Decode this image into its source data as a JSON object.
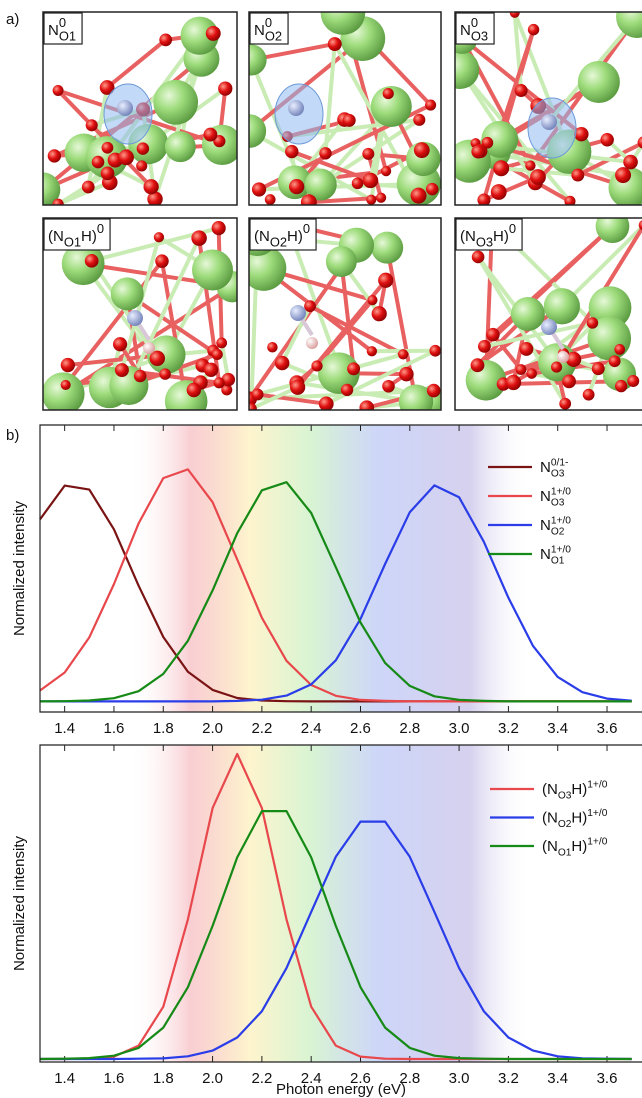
{
  "panel_a": {
    "label": "a)",
    "panels": [
      {
        "label": [
          {
            "text": "N"
          },
          {
            "text": "0",
            "style": "sup"
          },
          {
            "text": "O1",
            "style": "sub"
          }
        ]
      },
      {
        "label": [
          {
            "text": "N"
          },
          {
            "text": "0",
            "style": "sup"
          },
          {
            "text": "O2",
            "style": "sub"
          }
        ]
      },
      {
        "label": [
          {
            "text": "N"
          },
          {
            "text": "0",
            "style": "sup"
          },
          {
            "text": "O3",
            "style": "sub"
          }
        ]
      },
      {
        "label": [
          {
            "text": "(N"
          },
          {
            "text": "O1",
            "style": "sub"
          },
          {
            "text": "H)"
          },
          {
            "text": "0",
            "style": "sup"
          }
        ]
      },
      {
        "label": [
          {
            "text": "(N"
          },
          {
            "text": "O2",
            "style": "sub"
          },
          {
            "text": "H)"
          },
          {
            "text": "0",
            "style": "sup"
          }
        ]
      },
      {
        "label": [
          {
            "text": "(N"
          },
          {
            "text": "O3",
            "style": "sub"
          },
          {
            "text": "H)"
          },
          {
            "text": "0",
            "style": "sup"
          }
        ]
      }
    ]
  },
  "panel_b": {
    "label": "b)"
  },
  "chart_data": [
    {
      "type": "line",
      "ylabel": "Normalized intensity",
      "x": [
        1.3,
        1.4,
        1.5,
        1.6,
        1.7,
        1.8,
        1.9,
        2.0,
        2.1,
        2.2,
        2.3,
        2.4,
        2.5,
        2.6,
        2.7,
        2.8,
        2.9,
        3.0,
        3.1,
        3.2,
        3.3,
        3.4,
        3.5,
        3.6,
        3.7
      ],
      "xlim": [
        1.3,
        3.75
      ],
      "ylim": [
        -0.05,
        1.3
      ],
      "xticks": [
        1.4,
        1.6,
        1.8,
        {
          "value": 2,
          "label": "2.0"
        },
        2.2,
        2.4,
        2.6,
        2.8,
        {
          "value": 3,
          "label": "3.0"
        },
        3.2,
        3.4,
        3.6
      ],
      "legend": "upper right",
      "series": [
        {
          "name": [
            {
              "text": "N"
            },
            {
              "text": "0/1-",
              "style": "sup"
            },
            {
              "text": "O3",
              "style": "sub"
            }
          ],
          "color": "#7a1414",
          "values": [
            0.856,
            1.015,
            0.996,
            0.809,
            0.544,
            0.303,
            0.139,
            0.054,
            0.016,
            0.004,
            0.001,
            0,
            0,
            0,
            0,
            0,
            0,
            0,
            0,
            0,
            0,
            0,
            0,
            0,
            0
          ]
        },
        {
          "name": [
            {
              "text": "N"
            },
            {
              "text": "1+/0",
              "style": "sup"
            },
            {
              "text": "O3",
              "style": "sub"
            }
          ],
          "color": "#e8484c",
          "values": [
            0.051,
            0.136,
            0.301,
            0.552,
            0.837,
            1.05,
            1.091,
            0.937,
            0.668,
            0.393,
            0.191,
            0.077,
            0.026,
            0.007,
            0.002,
            0,
            0,
            0,
            0,
            0,
            0,
            0,
            0,
            0,
            0
          ]
        },
        {
          "name": [
            {
              "text": "N"
            },
            {
              "text": "1+/0",
              "style": "sup"
            },
            {
              "text": "O2",
              "style": "sub"
            }
          ],
          "color": "#2a3de8",
          "values": [
            0,
            0,
            0,
            0,
            0,
            0,
            0,
            0,
            0.002,
            0.008,
            0.027,
            0.08,
            0.193,
            0.388,
            0.646,
            0.89,
            1.016,
            0.96,
            0.751,
            0.487,
            0.26,
            0.115,
            0.043,
            0.013,
            0.003
          ]
        },
        {
          "name": [
            {
              "text": "N"
            },
            {
              "text": "1+/0",
              "style": "sup"
            },
            {
              "text": "O1",
              "style": "sub"
            }
          ],
          "color": "#168a16",
          "values": [
            0,
            0.001,
            0.004,
            0.015,
            0.048,
            0.129,
            0.285,
            0.522,
            0.791,
            0.993,
            1.031,
            0.886,
            0.631,
            0.371,
            0.181,
            0.073,
            0.024,
            0.007,
            0.002,
            0,
            0,
            0,
            0,
            0,
            0
          ]
        }
      ]
    },
    {
      "type": "line",
      "ylabel": "Normalized intensity",
      "xlabel": "Photon energy (eV)",
      "x": [
        1.3,
        1.4,
        1.5,
        1.6,
        1.7,
        1.8,
        1.9,
        2.0,
        2.1,
        2.2,
        2.3,
        2.4,
        2.5,
        2.6,
        2.7,
        2.8,
        2.9,
        3.0,
        3.1,
        3.2,
        3.3,
        3.4,
        3.5,
        3.6,
        3.7
      ],
      "xlim": [
        1.3,
        3.75
      ],
      "ylim": [
        -0.01,
        1.05
      ],
      "xticks": [
        1.4,
        1.6,
        1.8,
        {
          "value": 2,
          "label": "2.0"
        },
        2.2,
        2.4,
        2.6,
        2.8,
        {
          "value": 3,
          "label": "3.0"
        },
        3.2,
        3.4,
        3.6
      ],
      "legend": "upper right",
      "series": [
        {
          "name": [
            {
              "text": "(N"
            },
            {
              "text": "O3",
              "style": "sub"
            },
            {
              "text": "H)"
            },
            {
              "text": "1+/0",
              "style": "sup"
            }
          ],
          "color": "#e8484c",
          "values": [
            0,
            0,
            0.001,
            0.008,
            0.045,
            0.175,
            0.467,
            0.839,
            1.02,
            0.839,
            0.467,
            0.175,
            0.045,
            0.008,
            0.001,
            0,
            0,
            0,
            0,
            0,
            0,
            0,
            0,
            0,
            0
          ]
        },
        {
          "name": [
            {
              "text": "(N"
            },
            {
              "text": "O2",
              "style": "sub"
            },
            {
              "text": "H)"
            },
            {
              "text": "1+/0",
              "style": "sup"
            }
          ],
          "color": "#2a3de8",
          "values": [
            0,
            0,
            0,
            0,
            0.001,
            0.002,
            0.009,
            0.028,
            0.072,
            0.16,
            0.304,
            0.492,
            0.676,
            0.794,
            0.794,
            0.676,
            0.492,
            0.304,
            0.16,
            0.072,
            0.028,
            0.009,
            0.002,
            0.001,
            0
          ]
        },
        {
          "name": [
            {
              "text": "(N"
            },
            {
              "text": "O1",
              "style": "sub"
            },
            {
              "text": "H)"
            },
            {
              "text": "1+/0",
              "style": "sup"
            }
          ],
          "color": "#168a16",
          "values": [
            0,
            0.001,
            0.003,
            0.011,
            0.037,
            0.105,
            0.24,
            0.445,
            0.674,
            0.829,
            0.829,
            0.674,
            0.445,
            0.24,
            0.105,
            0.037,
            0.011,
            0.003,
            0.001,
            0,
            0,
            0,
            0,
            0,
            0
          ]
        }
      ]
    }
  ]
}
